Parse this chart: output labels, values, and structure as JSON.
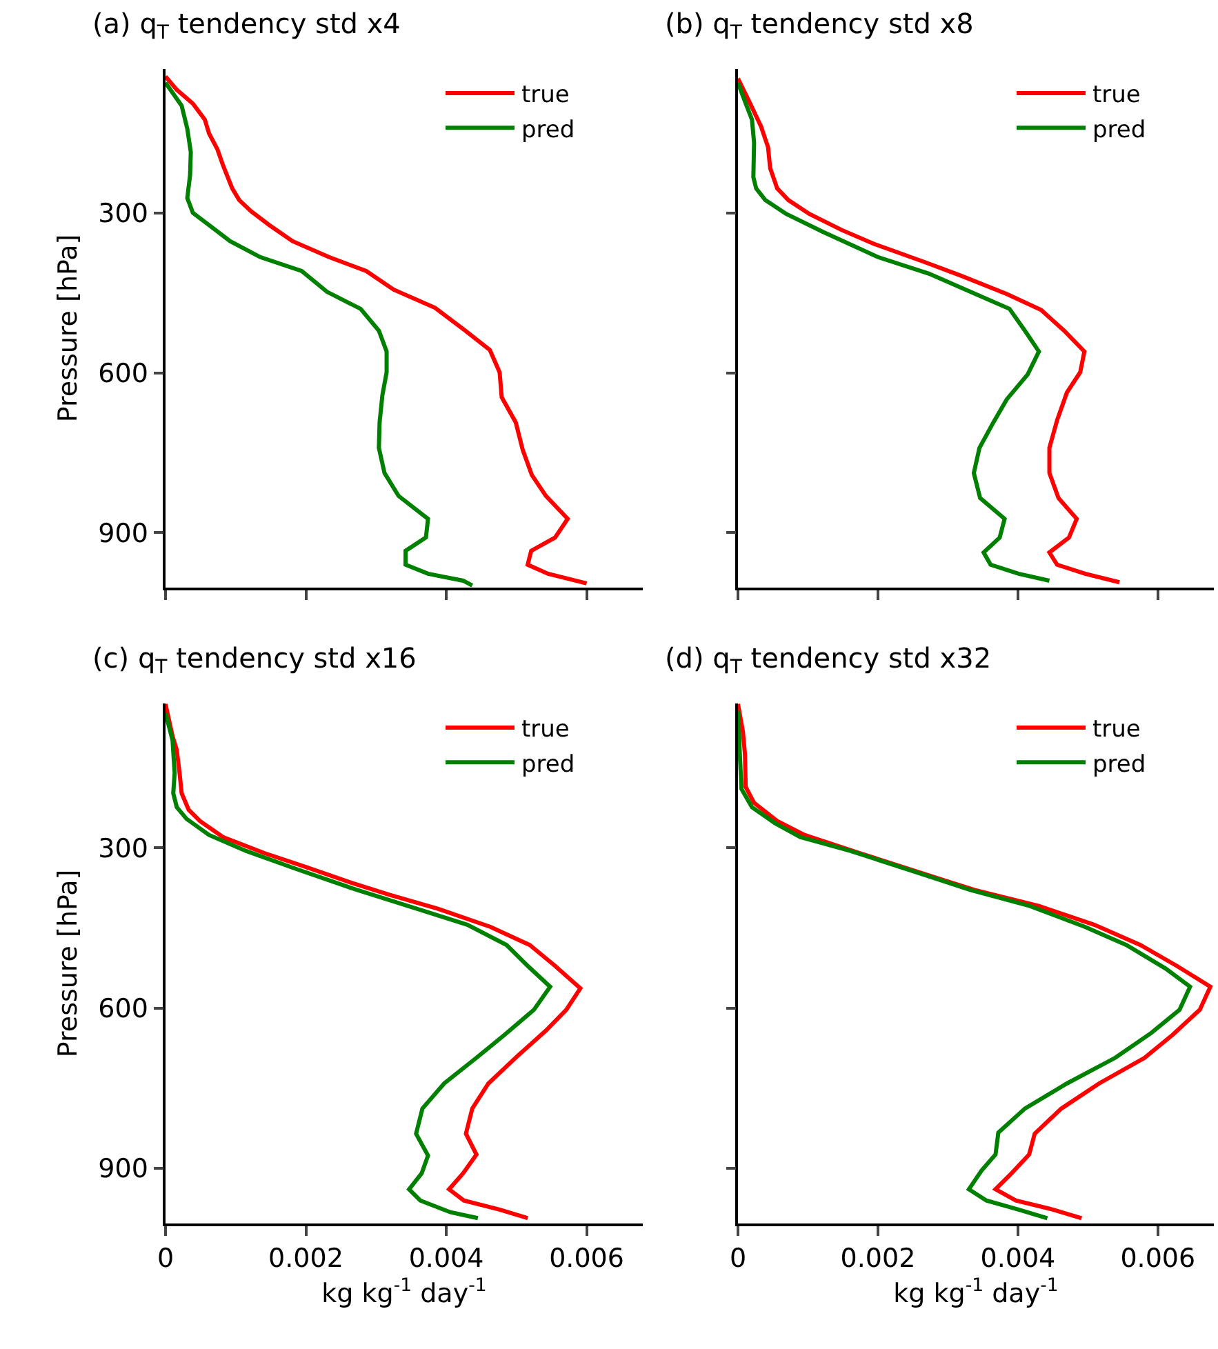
{
  "chart_data": [
    {
      "type": "line",
      "title": "(a) q$_{T}$ tendency std x4",
      "ylabel": "Pressure [hPa]",
      "xlim": [
        0,
        0.0068
      ],
      "xticks": [
        0,
        0.002,
        0.004,
        0.006
      ],
      "ylim": [
        1003,
        30
      ],
      "yticks": [
        300,
        600,
        900
      ],
      "grid": false,
      "legend": "top right",
      "tick_labels": "y",
      "line_style": "solid",
      "marker": "none",
      "series": [
        {
          "name": "true",
          "color": "#ff0000",
          "x": [
            0,
            0.00016,
            0.00039,
            0.00056,
            0.00062,
            0.00074,
            0.00082,
            0.00095,
            0.00105,
            0.00122,
            0.00148,
            0.00181,
            0.00233,
            0.00286,
            0.00325,
            0.00384,
            0.00427,
            0.00462,
            0.00476,
            0.00479,
            0.00499,
            0.00509,
            0.00522,
            0.00542,
            0.00573,
            0.00555,
            0.00521,
            0.00516,
            0.00545,
            0.006
          ],
          "values": [
            44,
            69,
            95,
            125,
            151,
            181,
            211,
            254,
            276,
            297,
            323,
            353,
            383,
            409,
            444,
            478,
            521,
            557,
            599,
            646,
            693,
            745,
            792,
            831,
            874,
            909,
            934,
            960,
            977,
            995
          ]
        },
        {
          "name": "pred",
          "color": "#008000",
          "x": [
            0,
            0.00023,
            0.00031,
            0.00036,
            0.00035,
            0.00031,
            0.00039,
            0.00062,
            0.00092,
            0.00135,
            0.00194,
            0.0023,
            0.00278,
            0.00304,
            0.00315,
            0.00315,
            0.00309,
            0.00305,
            0.00304,
            0.00312,
            0.00332,
            0.00374,
            0.00371,
            0.00342,
            0.00342,
            0.00374,
            0.00424,
            0.00437
          ],
          "values": [
            56,
            99,
            142,
            186,
            229,
            272,
            300,
            323,
            353,
            383,
            409,
            448,
            480,
            521,
            560,
            599,
            642,
            693,
            741,
            788,
            831,
            874,
            909,
            934,
            960,
            977,
            990,
            999
          ]
        }
      ]
    },
    {
      "type": "line",
      "title": "(b) q$_{T}$ tendency std x8",
      "xlim": [
        0,
        0.0068
      ],
      "xticks": [
        0,
        0.002,
        0.004,
        0.006
      ],
      "ylim": [
        1003,
        30
      ],
      "yticks": [
        300,
        600,
        900
      ],
      "grid": false,
      "legend": "top right",
      "tick_labels": false,
      "line_style": "solid",
      "marker": "none",
      "series": [
        {
          "name": "true",
          "color": "#ff0000",
          "x": [
            0,
            0.00016,
            0.00033,
            0.00043,
            0.00046,
            0.00056,
            0.00072,
            0.00102,
            0.00148,
            0.00194,
            0.00266,
            0.00319,
            0.00384,
            0.00433,
            0.00466,
            0.00495,
            0.00489,
            0.0047,
            0.00456,
            0.00445,
            0.00445,
            0.00458,
            0.00484,
            0.00473,
            0.00445,
            0.00456,
            0.00496,
            0.00545
          ],
          "values": [
            48,
            91,
            138,
            177,
            216,
            254,
            276,
            302,
            332,
            358,
            392,
            418,
            452,
            482,
            521,
            560,
            599,
            637,
            689,
            741,
            788,
            835,
            874,
            909,
            937,
            960,
            977,
            993
          ]
        },
        {
          "name": "pred",
          "color": "#008000",
          "x": [
            0,
            0.0001,
            0.0002,
            0.00023,
            0.00022,
            0.00026,
            0.00039,
            0.00069,
            0.00122,
            0.002,
            0.00273,
            0.00332,
            0.00388,
            0.0041,
            0.0043,
            0.00414,
            0.00384,
            0.00365,
            0.00345,
            0.00337,
            0.00346,
            0.00381,
            0.00374,
            0.00351,
            0.00361,
            0.00401,
            0.00445
          ],
          "values": [
            56,
            91,
            125,
            168,
            233,
            254,
            276,
            302,
            336,
            383,
            414,
            448,
            480,
            521,
            560,
            603,
            650,
            693,
            741,
            788,
            835,
            874,
            909,
            937,
            960,
            977,
            990
          ]
        }
      ]
    },
    {
      "type": "line",
      "title": "(c) q$_{T}$ tendency std x16",
      "xlabel": "kg kg$^{-1}$ day$^{-1}$",
      "ylabel": "Pressure [hPa]",
      "xlim": [
        0,
        0.0068
      ],
      "xticks": [
        0,
        0.002,
        0.004,
        0.006
      ],
      "ylim": [
        1003,
        30
      ],
      "yticks": [
        300,
        600,
        900
      ],
      "grid": false,
      "legend": "top right",
      "line_style": "solid",
      "marker": "none",
      "series": [
        {
          "name": "true",
          "color": "#ff0000",
          "x": [
            0,
            0.0001,
            0.00016,
            0.0002,
            0.00023,
            0.00033,
            0.00049,
            0.00082,
            0.00141,
            0.002,
            0.00266,
            0.00319,
            0.00388,
            0.00463,
            0.00519,
            0.00555,
            0.00591,
            0.00571,
            0.00542,
            0.00502,
            0.0046,
            0.00437,
            0.00428,
            0.00443,
            0.00424,
            0.00404,
            0.00425,
            0.00476,
            0.00516
          ],
          "values": [
            31,
            91,
            117,
            160,
            198,
            229,
            250,
            280,
            310,
            336,
            366,
            388,
            414,
            448,
            482,
            521,
            563,
            603,
            642,
            689,
            741,
            788,
            835,
            874,
            909,
            939,
            960,
            977,
            993
          ]
        },
        {
          "name": "pred",
          "color": "#008000",
          "x": [
            0,
            0.0001,
            0.00013,
            0.00011,
            0.00016,
            0.0003,
            0.00062,
            0.00115,
            0.00187,
            0.00273,
            0.00358,
            0.0043,
            0.00486,
            0.00516,
            0.00548,
            0.00525,
            0.00483,
            0.00443,
            0.00397,
            0.00366,
            0.00357,
            0.00374,
            0.00365,
            0.00347,
            0.00363,
            0.00406,
            0.00445
          ],
          "values": [
            48,
            99,
            160,
            198,
            224,
            246,
            276,
            306,
            340,
            379,
            414,
            444,
            482,
            521,
            560,
            603,
            650,
            693,
            741,
            788,
            835,
            876,
            909,
            939,
            960,
            982,
            993
          ]
        }
      ]
    },
    {
      "type": "line",
      "title": "(d) q$_{T}$ tendency std x32",
      "xlabel": "kg kg$^{-1}$ day$^{-1}$",
      "xlim": [
        0,
        0.0068
      ],
      "xticks": [
        0,
        0.002,
        0.004,
        0.006
      ],
      "ylim": [
        1003,
        30
      ],
      "yticks": [
        300,
        600,
        900
      ],
      "grid": false,
      "legend": "top right",
      "tick_labels": "x",
      "line_style": "solid",
      "marker": "none",
      "series": [
        {
          "name": "true",
          "color": "#ff0000",
          "x": [
            0,
            7e-05,
            0.0001,
            0.00011,
            0.00023,
            0.00056,
            0.00095,
            0.00174,
            0.00266,
            0.00338,
            0.0043,
            0.00509,
            0.00575,
            0.00627,
            0.00675,
            0.0066,
            0.00621,
            0.00581,
            0.00516,
            0.00462,
            0.00424,
            0.00416,
            0.00391,
            0.00368,
            0.00397,
            0.0045,
            0.00491
          ],
          "values": [
            31,
            82,
            125,
            186,
            216,
            250,
            276,
            310,
            349,
            379,
            409,
            444,
            482,
            521,
            560,
            603,
            650,
            693,
            741,
            788,
            835,
            874,
            909,
            939,
            960,
            977,
            993
          ]
        },
        {
          "name": "pred",
          "color": "#008000",
          "x": [
            0,
            3e-05,
            5e-05,
            0.0002,
            0.00053,
            0.00089,
            0.00161,
            0.00253,
            0.00332,
            0.00417,
            0.00496,
            0.00555,
            0.00611,
            0.00646,
            0.00631,
            0.00591,
            0.00539,
            0.0047,
            0.0041,
            0.00372,
            0.00368,
            0.00348,
            0.0033,
            0.00355,
            0.00401,
            0.00442
          ],
          "values": [
            44,
            134,
            190,
            224,
            254,
            280,
            306,
            345,
            379,
            409,
            448,
            482,
            526,
            560,
            603,
            646,
            693,
            741,
            788,
            833,
            874,
            904,
            939,
            960,
            977,
            993
          ]
        }
      ]
    }
  ]
}
